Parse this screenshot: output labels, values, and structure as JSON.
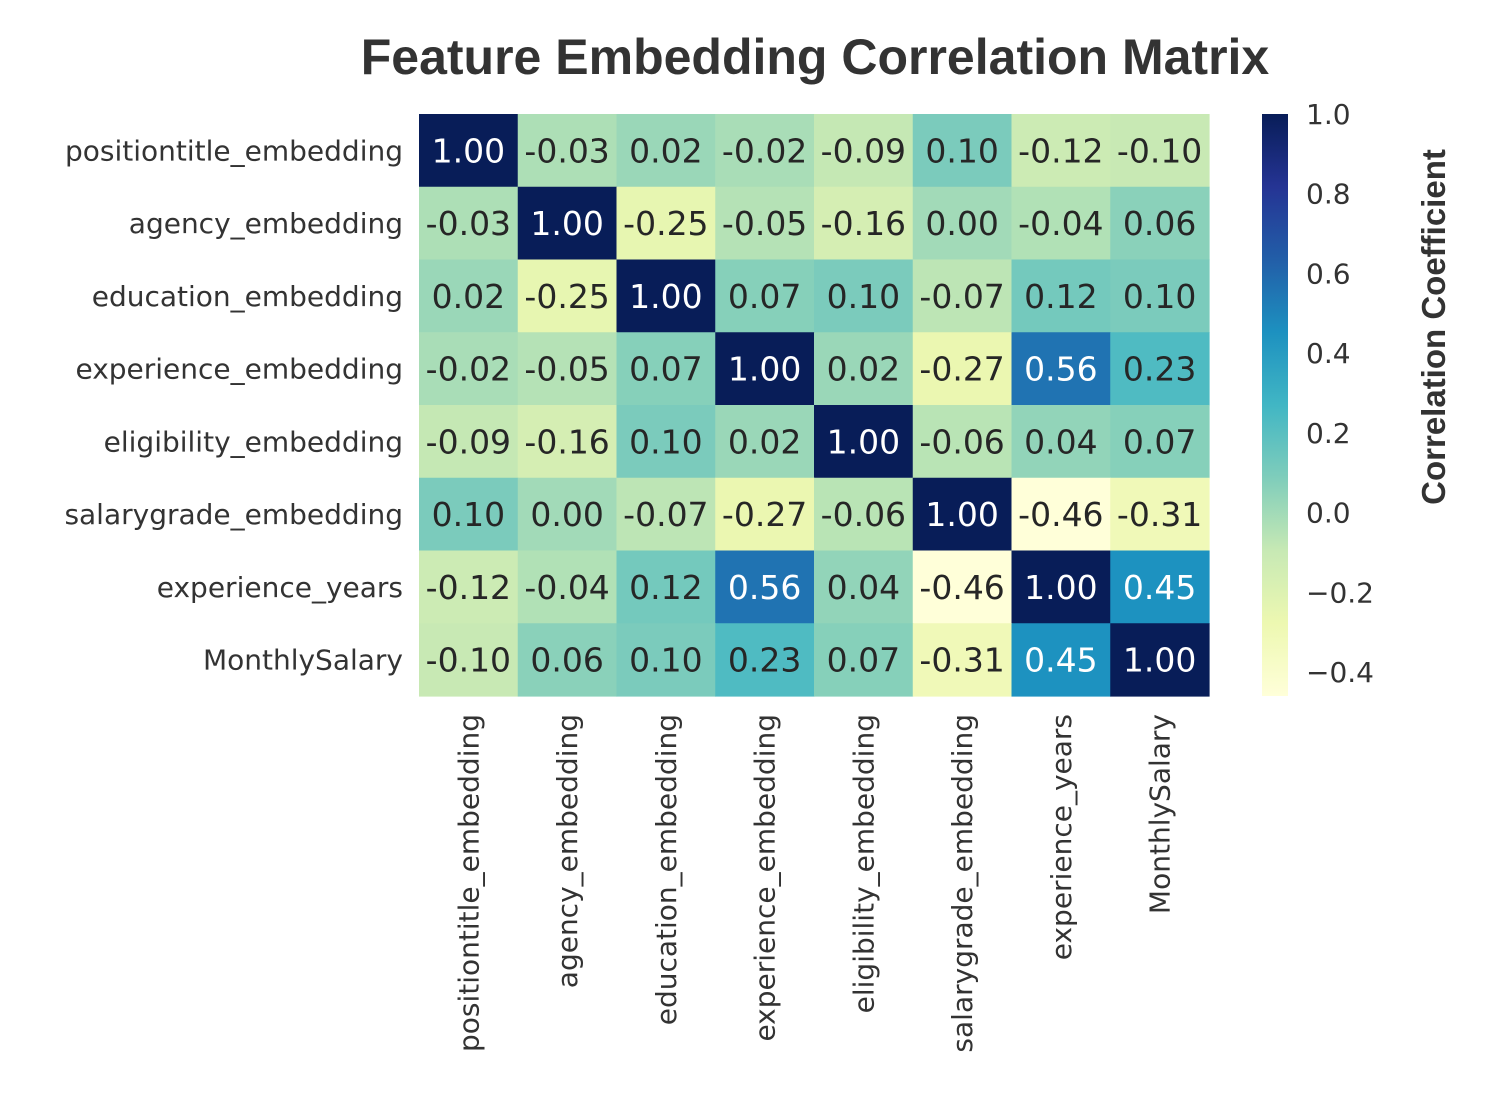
{
  "chart_data": {
    "type": "heatmap",
    "title": "Feature Embedding Correlation Matrix",
    "rows": [
      "positiontitle_embedding",
      "agency_embedding",
      "education_embedding",
      "experience_embedding",
      "eligibility_embedding",
      "salarygrade_embedding",
      "experience_years",
      "MonthlySalary"
    ],
    "columns": [
      "positiontitle_embedding",
      "agency_embedding",
      "education_embedding",
      "experience_embedding",
      "eligibility_embedding",
      "salarygrade_embedding",
      "experience_years",
      "MonthlySalary"
    ],
    "values": [
      [
        1.0,
        -0.03,
        0.02,
        -0.02,
        -0.09,
        0.1,
        -0.12,
        -0.1
      ],
      [
        -0.03,
        1.0,
        -0.25,
        -0.05,
        -0.16,
        -0.0,
        -0.04,
        0.06
      ],
      [
        0.02,
        -0.25,
        1.0,
        0.07,
        0.1,
        -0.07,
        0.12,
        0.1
      ],
      [
        -0.02,
        -0.05,
        0.07,
        1.0,
        0.02,
        -0.27,
        0.56,
        0.23
      ],
      [
        -0.09,
        -0.16,
        0.1,
        0.02,
        1.0,
        -0.06,
        0.04,
        0.07
      ],
      [
        0.1,
        -0.0,
        -0.07,
        -0.27,
        -0.06,
        1.0,
        -0.46,
        -0.31
      ],
      [
        -0.12,
        -0.04,
        0.12,
        0.56,
        0.04,
        -0.46,
        1.0,
        0.45
      ],
      [
        -0.1,
        0.06,
        0.1,
        0.23,
        0.07,
        -0.31,
        0.45,
        1.0
      ]
    ],
    "colormap": "YlGnBu",
    "vmin": -0.46,
    "vmax": 1.0,
    "colorbar": {
      "label": "Correlation Coefficient",
      "ticks": [
        1.0,
        0.8,
        0.6,
        0.4,
        0.2,
        0.0,
        -0.2,
        -0.4
      ],
      "tick_labels": [
        "1.0",
        "0.8",
        "0.6",
        "0.4",
        "0.2",
        "0.0",
        "−0.2",
        "−0.4"
      ],
      "placement": "right"
    },
    "value_format": "2 decimals"
  },
  "colors": {
    "text": "#333333",
    "ylgnbu_stops": [
      "#ffffd9",
      "#edf8b1",
      "#c7e9b4",
      "#7fcdbb",
      "#41b6c4",
      "#1d91c0",
      "#225ea8",
      "#253494",
      "#081d58"
    ]
  }
}
